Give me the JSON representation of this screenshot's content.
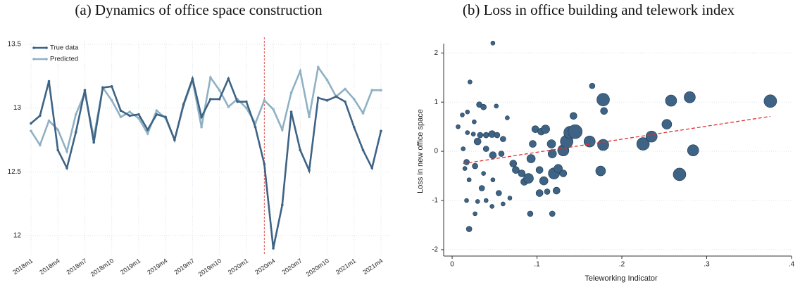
{
  "chart_data": [
    {
      "type": "line",
      "title": "(a) Dynamics of office space construction",
      "categories": [
        "2018m1",
        null,
        null,
        "2018m4",
        null,
        null,
        "2018m7",
        null,
        null,
        "2018m10",
        null,
        null,
        "2019m1",
        null,
        null,
        "2019m4",
        null,
        null,
        "2019m7",
        null,
        null,
        "2019m10",
        null,
        null,
        "2020m1",
        null,
        null,
        "2020m4",
        null,
        null,
        "2020m7",
        null,
        null,
        "2020m10",
        null,
        null,
        "2021m1",
        null,
        null,
        "2021m4"
      ],
      "series": [
        {
          "name": "True data",
          "color": "#3e6384",
          "values": [
            12.88,
            12.94,
            13.21,
            12.67,
            12.53,
            12.81,
            13.14,
            12.73,
            13.16,
            13.17,
            12.98,
            12.94,
            12.95,
            12.83,
            12.95,
            12.93,
            12.75,
            13.03,
            13.23,
            12.93,
            13.07,
            13.07,
            13.23,
            13.05,
            13.05,
            12.85,
            12.56,
            11.9,
            12.24,
            12.97,
            12.67,
            12.51,
            13.08,
            13.06,
            13.09,
            13.05,
            12.85,
            12.67,
            12.53,
            12.82
          ]
        },
        {
          "name": "Predicted",
          "color": "#8fb1c4",
          "values": [
            12.82,
            12.71,
            12.9,
            12.83,
            12.66,
            12.95,
            13.12,
            12.77,
            13.16,
            13.06,
            12.93,
            12.97,
            12.92,
            12.8,
            12.98,
            12.92,
            12.75,
            13.02,
            13.22,
            12.85,
            13.24,
            13.14,
            13.01,
            13.07,
            13.0,
            12.88,
            13.06,
            12.99,
            12.83,
            13.12,
            13.29,
            12.93,
            13.32,
            13.22,
            13.09,
            13.15,
            13.07,
            12.96,
            13.14,
            13.14
          ]
        }
      ],
      "ylim": [
        11.85,
        13.5
      ],
      "yticks": [
        12,
        12.5,
        13,
        13.5
      ],
      "grid": "both",
      "legend": "top-left",
      "vline": {
        "index": 26,
        "color": "#d9534f"
      }
    },
    {
      "type": "scatter",
      "title": "(b) Loss in office building and telework index",
      "xlabel": "Teleworking Indicator",
      "ylabel": "Loss in new office space",
      "series": [
        {
          "color": "#3e6384",
          "x": [
            0.048,
            0.021,
            0.012,
            0.018,
            0.032,
            0.037,
            0.052,
            0.007,
            0.026,
            0.018,
            0.025,
            0.033,
            0.04,
            0.047,
            0.053,
            0.06,
            0.03,
            0.013,
            0.017,
            0.015,
            0.027,
            0.04,
            0.048,
            0.058,
            0.065,
            0.072,
            0.075,
            0.082,
            0.085,
            0.09,
            0.093,
            0.095,
            0.098,
            0.103,
            0.108,
            0.105,
            0.11,
            0.117,
            0.118,
            0.12,
            0.125,
            0.131,
            0.135,
            0.139,
            0.145,
            0.131,
            0.143,
            0.162,
            0.165,
            0.175,
            0.178,
            0.179,
            0.178,
            0.225,
            0.235,
            0.253,
            0.258,
            0.268,
            0.28,
            0.284,
            0.375,
            0.02,
            0.017,
            0.02,
            0.027,
            0.035,
            0.03,
            0.04,
            0.047,
            0.055,
            0.06,
            0.068,
            0.092,
            0.103,
            0.118,
            0.112,
            0.123,
            0.048,
            0.037
          ],
          "y": [
            2.2,
            1.41,
            0.74,
            0.8,
            0.95,
            0.9,
            0.92,
            0.5,
            0.6,
            0.38,
            0.35,
            0.33,
            0.33,
            0.35,
            0.33,
            0.25,
            0.2,
            0.05,
            -0.22,
            -0.35,
            -0.3,
            0.05,
            -0.08,
            -0.05,
            0.68,
            -0.25,
            -0.38,
            -0.45,
            -0.62,
            -0.55,
            -0.15,
            0.15,
            0.45,
            -0.85,
            -0.6,
            0.4,
            0.45,
            0.15,
            -0.05,
            -0.45,
            -0.35,
            0.02,
            0.2,
            0.38,
            0.4,
            -0.45,
            0.72,
            0.2,
            1.33,
            -0.4,
            1.05,
            0.82,
            0.13,
            0.15,
            0.3,
            0.55,
            1.03,
            -0.47,
            1.1,
            0.02,
            1.02,
            -0.58,
            -1.0,
            -1.58,
            -1.27,
            -0.75,
            -1.02,
            -1.0,
            -1.12,
            -0.85,
            -1.07,
            -0.95,
            -1.27,
            -0.38,
            -1.27,
            -0.82,
            -0.8,
            -0.58,
            -0.45
          ],
          "sizes": [
            3,
            3,
            3,
            3,
            4,
            4,
            3,
            3,
            3,
            3,
            3,
            4,
            4,
            5,
            4,
            4,
            5,
            3,
            4,
            3,
            4,
            4,
            5,
            4,
            3,
            5,
            5,
            5,
            5,
            7,
            6,
            5,
            5,
            5,
            6,
            5,
            6,
            6,
            6,
            8,
            6,
            8,
            9,
            9,
            10,
            5,
            5,
            8,
            4,
            7,
            9,
            5,
            8,
            9,
            8,
            7,
            8,
            9,
            8,
            8,
            9,
            3,
            3,
            4,
            3,
            4,
            3,
            3,
            3,
            4,
            3,
            3,
            4,
            5,
            4,
            4,
            5,
            3,
            3
          ]
        }
      ],
      "fit_line": {
        "color": "#e03030",
        "x": [
          0.013,
          0.375
        ],
        "y": [
          -0.25,
          0.71
        ]
      },
      "xlim": [
        -0.01,
        0.4
      ],
      "ylim": [
        -2.13,
        2.19
      ],
      "xticks": [
        0,
        {
          "value": 0.1,
          "label": ".1"
        },
        {
          "value": 0.2,
          "label": ".2"
        },
        {
          "value": 0.3,
          "label": ".3"
        },
        {
          "value": 0.4,
          "label": ".4"
        }
      ],
      "yticks": [
        -2,
        -1,
        0,
        1,
        2
      ],
      "grid": "y"
    }
  ]
}
